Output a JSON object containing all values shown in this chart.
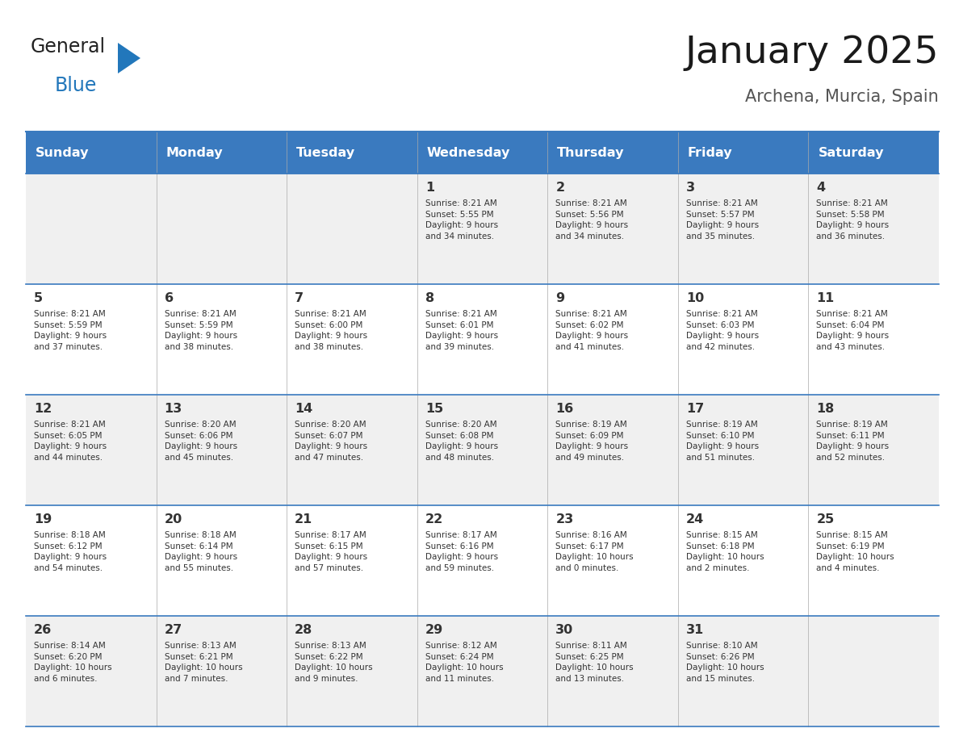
{
  "title": "January 2025",
  "subtitle": "Archena, Murcia, Spain",
  "header_bg_color": "#3a7abf",
  "header_text_color": "#ffffff",
  "row_bg_even": "#f0f0f0",
  "row_bg_odd": "#ffffff",
  "day_headers": [
    "Sunday",
    "Monday",
    "Tuesday",
    "Wednesday",
    "Thursday",
    "Friday",
    "Saturday"
  ],
  "cell_border_color": "#3a7abf",
  "day_number_color": "#333333",
  "info_text_color": "#333333",
  "logo_general_color": "#222222",
  "logo_blue_color": "#2277bb",
  "days": [
    {
      "row": 0,
      "col": 0,
      "num": "",
      "sunrise": "",
      "sunset": "",
      "daylight": ""
    },
    {
      "row": 0,
      "col": 1,
      "num": "",
      "sunrise": "",
      "sunset": "",
      "daylight": ""
    },
    {
      "row": 0,
      "col": 2,
      "num": "",
      "sunrise": "",
      "sunset": "",
      "daylight": ""
    },
    {
      "row": 0,
      "col": 3,
      "num": "1",
      "sunrise": "Sunrise: 8:21 AM",
      "sunset": "Sunset: 5:55 PM",
      "daylight": "Daylight: 9 hours\nand 34 minutes."
    },
    {
      "row": 0,
      "col": 4,
      "num": "2",
      "sunrise": "Sunrise: 8:21 AM",
      "sunset": "Sunset: 5:56 PM",
      "daylight": "Daylight: 9 hours\nand 34 minutes."
    },
    {
      "row": 0,
      "col": 5,
      "num": "3",
      "sunrise": "Sunrise: 8:21 AM",
      "sunset": "Sunset: 5:57 PM",
      "daylight": "Daylight: 9 hours\nand 35 minutes."
    },
    {
      "row": 0,
      "col": 6,
      "num": "4",
      "sunrise": "Sunrise: 8:21 AM",
      "sunset": "Sunset: 5:58 PM",
      "daylight": "Daylight: 9 hours\nand 36 minutes."
    },
    {
      "row": 1,
      "col": 0,
      "num": "5",
      "sunrise": "Sunrise: 8:21 AM",
      "sunset": "Sunset: 5:59 PM",
      "daylight": "Daylight: 9 hours\nand 37 minutes."
    },
    {
      "row": 1,
      "col": 1,
      "num": "6",
      "sunrise": "Sunrise: 8:21 AM",
      "sunset": "Sunset: 5:59 PM",
      "daylight": "Daylight: 9 hours\nand 38 minutes."
    },
    {
      "row": 1,
      "col": 2,
      "num": "7",
      "sunrise": "Sunrise: 8:21 AM",
      "sunset": "Sunset: 6:00 PM",
      "daylight": "Daylight: 9 hours\nand 38 minutes."
    },
    {
      "row": 1,
      "col": 3,
      "num": "8",
      "sunrise": "Sunrise: 8:21 AM",
      "sunset": "Sunset: 6:01 PM",
      "daylight": "Daylight: 9 hours\nand 39 minutes."
    },
    {
      "row": 1,
      "col": 4,
      "num": "9",
      "sunrise": "Sunrise: 8:21 AM",
      "sunset": "Sunset: 6:02 PM",
      "daylight": "Daylight: 9 hours\nand 41 minutes."
    },
    {
      "row": 1,
      "col": 5,
      "num": "10",
      "sunrise": "Sunrise: 8:21 AM",
      "sunset": "Sunset: 6:03 PM",
      "daylight": "Daylight: 9 hours\nand 42 minutes."
    },
    {
      "row": 1,
      "col": 6,
      "num": "11",
      "sunrise": "Sunrise: 8:21 AM",
      "sunset": "Sunset: 6:04 PM",
      "daylight": "Daylight: 9 hours\nand 43 minutes."
    },
    {
      "row": 2,
      "col": 0,
      "num": "12",
      "sunrise": "Sunrise: 8:21 AM",
      "sunset": "Sunset: 6:05 PM",
      "daylight": "Daylight: 9 hours\nand 44 minutes."
    },
    {
      "row": 2,
      "col": 1,
      "num": "13",
      "sunrise": "Sunrise: 8:20 AM",
      "sunset": "Sunset: 6:06 PM",
      "daylight": "Daylight: 9 hours\nand 45 minutes."
    },
    {
      "row": 2,
      "col": 2,
      "num": "14",
      "sunrise": "Sunrise: 8:20 AM",
      "sunset": "Sunset: 6:07 PM",
      "daylight": "Daylight: 9 hours\nand 47 minutes."
    },
    {
      "row": 2,
      "col": 3,
      "num": "15",
      "sunrise": "Sunrise: 8:20 AM",
      "sunset": "Sunset: 6:08 PM",
      "daylight": "Daylight: 9 hours\nand 48 minutes."
    },
    {
      "row": 2,
      "col": 4,
      "num": "16",
      "sunrise": "Sunrise: 8:19 AM",
      "sunset": "Sunset: 6:09 PM",
      "daylight": "Daylight: 9 hours\nand 49 minutes."
    },
    {
      "row": 2,
      "col": 5,
      "num": "17",
      "sunrise": "Sunrise: 8:19 AM",
      "sunset": "Sunset: 6:10 PM",
      "daylight": "Daylight: 9 hours\nand 51 minutes."
    },
    {
      "row": 2,
      "col": 6,
      "num": "18",
      "sunrise": "Sunrise: 8:19 AM",
      "sunset": "Sunset: 6:11 PM",
      "daylight": "Daylight: 9 hours\nand 52 minutes."
    },
    {
      "row": 3,
      "col": 0,
      "num": "19",
      "sunrise": "Sunrise: 8:18 AM",
      "sunset": "Sunset: 6:12 PM",
      "daylight": "Daylight: 9 hours\nand 54 minutes."
    },
    {
      "row": 3,
      "col": 1,
      "num": "20",
      "sunrise": "Sunrise: 8:18 AM",
      "sunset": "Sunset: 6:14 PM",
      "daylight": "Daylight: 9 hours\nand 55 minutes."
    },
    {
      "row": 3,
      "col": 2,
      "num": "21",
      "sunrise": "Sunrise: 8:17 AM",
      "sunset": "Sunset: 6:15 PM",
      "daylight": "Daylight: 9 hours\nand 57 minutes."
    },
    {
      "row": 3,
      "col": 3,
      "num": "22",
      "sunrise": "Sunrise: 8:17 AM",
      "sunset": "Sunset: 6:16 PM",
      "daylight": "Daylight: 9 hours\nand 59 minutes."
    },
    {
      "row": 3,
      "col": 4,
      "num": "23",
      "sunrise": "Sunrise: 8:16 AM",
      "sunset": "Sunset: 6:17 PM",
      "daylight": "Daylight: 10 hours\nand 0 minutes."
    },
    {
      "row": 3,
      "col": 5,
      "num": "24",
      "sunrise": "Sunrise: 8:15 AM",
      "sunset": "Sunset: 6:18 PM",
      "daylight": "Daylight: 10 hours\nand 2 minutes."
    },
    {
      "row": 3,
      "col": 6,
      "num": "25",
      "sunrise": "Sunrise: 8:15 AM",
      "sunset": "Sunset: 6:19 PM",
      "daylight": "Daylight: 10 hours\nand 4 minutes."
    },
    {
      "row": 4,
      "col": 0,
      "num": "26",
      "sunrise": "Sunrise: 8:14 AM",
      "sunset": "Sunset: 6:20 PM",
      "daylight": "Daylight: 10 hours\nand 6 minutes."
    },
    {
      "row": 4,
      "col": 1,
      "num": "27",
      "sunrise": "Sunrise: 8:13 AM",
      "sunset": "Sunset: 6:21 PM",
      "daylight": "Daylight: 10 hours\nand 7 minutes."
    },
    {
      "row": 4,
      "col": 2,
      "num": "28",
      "sunrise": "Sunrise: 8:13 AM",
      "sunset": "Sunset: 6:22 PM",
      "daylight": "Daylight: 10 hours\nand 9 minutes."
    },
    {
      "row": 4,
      "col": 3,
      "num": "29",
      "sunrise": "Sunrise: 8:12 AM",
      "sunset": "Sunset: 6:24 PM",
      "daylight": "Daylight: 10 hours\nand 11 minutes."
    },
    {
      "row": 4,
      "col": 4,
      "num": "30",
      "sunrise": "Sunrise: 8:11 AM",
      "sunset": "Sunset: 6:25 PM",
      "daylight": "Daylight: 10 hours\nand 13 minutes."
    },
    {
      "row": 4,
      "col": 5,
      "num": "31",
      "sunrise": "Sunrise: 8:10 AM",
      "sunset": "Sunset: 6:26 PM",
      "daylight": "Daylight: 10 hours\nand 15 minutes."
    },
    {
      "row": 4,
      "col": 6,
      "num": "",
      "sunrise": "",
      "sunset": "",
      "daylight": ""
    }
  ]
}
